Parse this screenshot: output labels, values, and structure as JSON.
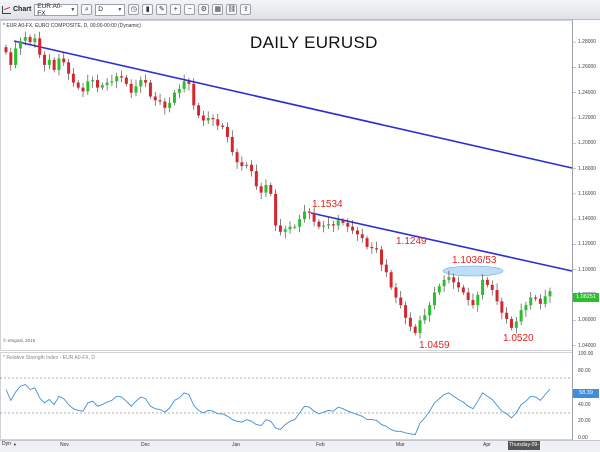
{
  "toolbar": {
    "label": "Chart",
    "symbol": "EUR A0-FX",
    "interval": "D"
  },
  "chart": {
    "subtitle": "* EUR A0-FX, EURO COMPOSITE, D, 00:00-00:00 (Dynamic)",
    "title": "DAILY EURUSD",
    "watermark": "© eSignal, 2015",
    "price_tag": "1.08251",
    "annotations": {
      "a1": "1.1534",
      "a2": "1.1249",
      "a3": "1.1036/53",
      "a4": "1.0459",
      "a5": "1.0520"
    }
  },
  "rsi": {
    "title": "* Relative Strength Index - EUR A0-FX, D",
    "value_tag": "58.39"
  },
  "bottom": {
    "dyn": "Dyn",
    "date_tag": "Thursday-09-04"
  },
  "colors": {
    "up": "#27c227",
    "down": "#d7262b",
    "trendline": "#2a2fd4",
    "rsi_line": "#3f8fd8"
  },
  "chart_data": {
    "type": "candlestick",
    "title": "DAILY EURUSD",
    "y_ticks": [
      "1.28000",
      "1.26000",
      "1.24000",
      "1.22000",
      "1.20000",
      "1.18000",
      "1.16000",
      "1.14000",
      "1.12000",
      "1.10000",
      "1.08000",
      "1.06000",
      "1.04000"
    ],
    "ylim": [
      1.04,
      1.29
    ],
    "x_ticks": [
      "Nov",
      "Dec",
      "Jan",
      "Feb",
      "Mar",
      "Apr"
    ],
    "rsi_ticks": [
      "100.00",
      "80.00",
      "40.00",
      "20.00",
      "0.00"
    ],
    "rsi_ylim": [
      0,
      100
    ],
    "rsi_levels": [
      70,
      30
    ],
    "closes": [
      1.272,
      1.262,
      1.275,
      1.281,
      1.284,
      1.28,
      1.283,
      1.27,
      1.262,
      1.266,
      1.258,
      1.267,
      1.264,
      1.255,
      1.248,
      1.244,
      1.241,
      1.249,
      1.25,
      1.244,
      1.246,
      1.248,
      1.249,
      1.253,
      1.252,
      1.247,
      1.24,
      1.245,
      1.25,
      1.248,
      1.237,
      1.234,
      1.233,
      1.228,
      1.232,
      1.24,
      1.243,
      1.249,
      1.247,
      1.23,
      1.222,
      1.218,
      1.22,
      1.219,
      1.214,
      1.213,
      1.205,
      1.193,
      1.185,
      1.182,
      1.183,
      1.178,
      1.166,
      1.161,
      1.167,
      1.16,
      1.135,
      1.13,
      1.132,
      1.134,
      1.134,
      1.14,
      1.146,
      1.145,
      1.138,
      1.134,
      1.135,
      1.136,
      1.135,
      1.139,
      1.137,
      1.134,
      1.131,
      1.128,
      1.125,
      1.118,
      1.117,
      1.116,
      1.104,
      1.098,
      1.086,
      1.078,
      1.072,
      1.062,
      1.055,
      1.05,
      1.06,
      1.064,
      1.072,
      1.082,
      1.087,
      1.092,
      1.094,
      1.09,
      1.086,
      1.082,
      1.076,
      1.072,
      1.08,
      1.092,
      1.088,
      1.084,
      1.075,
      1.066,
      1.061,
      1.054,
      1.059,
      1.068,
      1.072,
      1.078,
      1.077,
      1.073,
      1.079,
      1.083
    ],
    "rsi": [
      58,
      45,
      55,
      62,
      64,
      58,
      60,
      48,
      42,
      46,
      40,
      50,
      47,
      40,
      35,
      33,
      32,
      42,
      44,
      38,
      40,
      43,
      45,
      50,
      49,
      44,
      38,
      44,
      49,
      47,
      38,
      35,
      34,
      31,
      36,
      45,
      48,
      54,
      52,
      39,
      33,
      30,
      33,
      32,
      29,
      29,
      26,
      22,
      20,
      19,
      22,
      20,
      16,
      15,
      22,
      20,
      12,
      10,
      16,
      20,
      22,
      30,
      38,
      37,
      32,
      29,
      31,
      33,
      32,
      37,
      35,
      32,
      30,
      28,
      26,
      22,
      22,
      21,
      16,
      14,
      10,
      8,
      8,
      6,
      5,
      4,
      18,
      24,
      32,
      42,
      47,
      52,
      54,
      50,
      46,
      43,
      38,
      35,
      44,
      54,
      50,
      46,
      39,
      32,
      29,
      24,
      30,
      40,
      44,
      50,
      49,
      45,
      52,
      58.39
    ]
  }
}
